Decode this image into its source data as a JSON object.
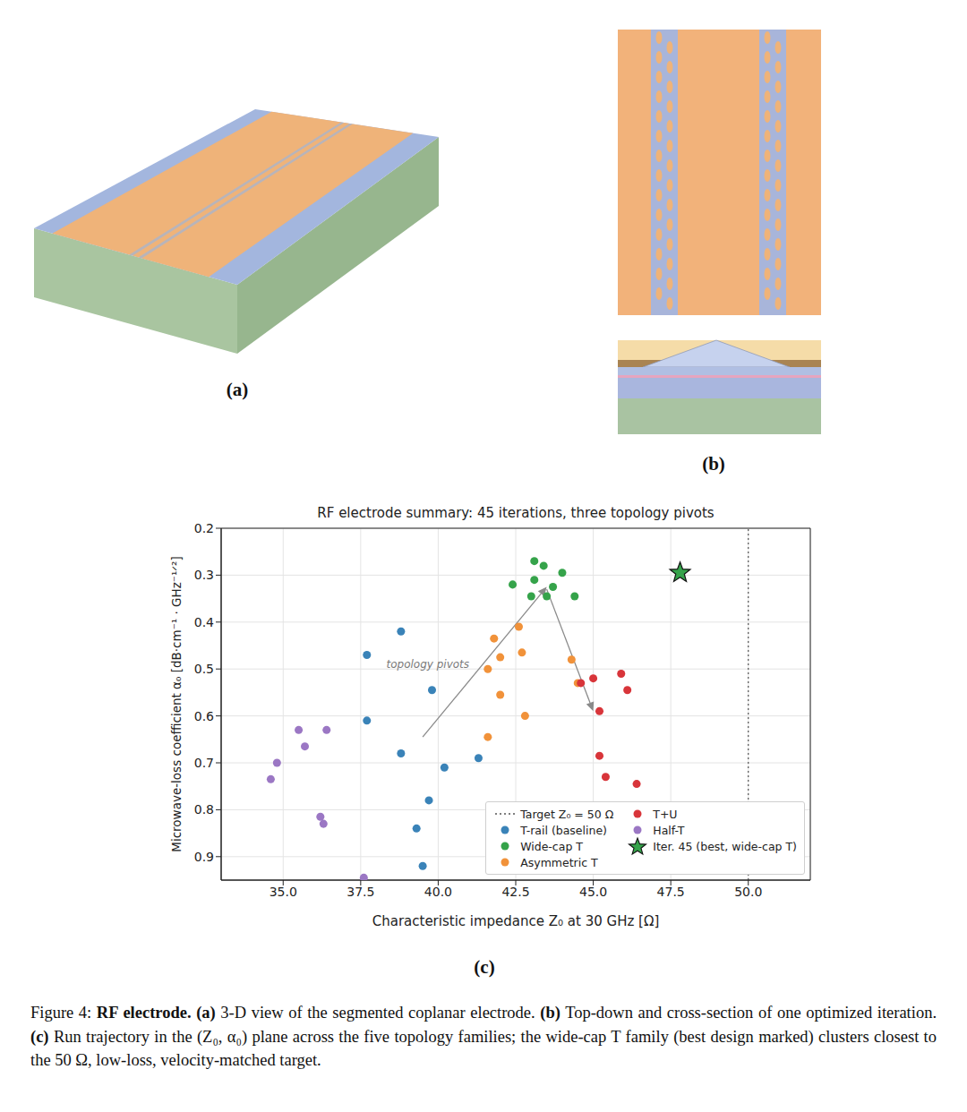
{
  "figure": {
    "panels": [
      {
        "label": "(a)"
      },
      {
        "label": "(b)"
      },
      {
        "label": "(c)"
      }
    ],
    "caption": {
      "number": "Figure 4:",
      "title": "RF electrode.",
      "parts": [
        {
          "label": "(a)",
          "text": "3-D view of the segmented coplanar electrode."
        },
        {
          "label": "(b)",
          "text": "Top-down and cross-section of one optimized iteration."
        },
        {
          "label": "(c)",
          "text": "Run trajectory in the (Z₀, α₀) plane across the five topology families; the wide-cap T family (best design marked) clusters closest to the 50 Ω, low-loss, velocity-matched target."
        }
      ]
    }
  },
  "chart_data": {
    "type": "scatter",
    "title": "RF electrode summary: 45 iterations, three topology pivots",
    "x_label": "Characteristic impedance Z₀ at 30 GHz  [Ω]",
    "y_label": "Microwave-loss coefficient α₀  [dB·cm⁻¹ · GHz⁻¹ᐟ²]",
    "xlim": [
      33,
      52
    ],
    "xticks": [
      {
        "value": 35,
        "label": "35.0"
      },
      37.5,
      {
        "value": 40,
        "label": "40.0"
      },
      42.5,
      {
        "value": 45,
        "label": "45.0"
      },
      47.5,
      {
        "value": 50,
        "label": "50.0"
      }
    ],
    "ylim": [
      0.95,
      0.2
    ],
    "yticks": [
      0.2,
      0.3,
      0.4,
      0.5,
      0.6,
      0.7,
      0.8,
      0.9
    ],
    "grid": true,
    "legend": "lower right",
    "target": {
      "name": "Target Z₀ = 50 Ω",
      "value": 50,
      "line_style": "dotted"
    },
    "series": [
      {
        "name": "T-rail (baseline)",
        "color": "#3a83b8",
        "marker": "circle",
        "x": [
          38.8,
          37.7,
          39.8,
          37.7,
          38.8,
          40.2,
          41.3,
          39.7,
          39.3,
          39.5
        ],
        "values": [
          0.42,
          0.47,
          0.545,
          0.61,
          0.68,
          0.71,
          0.69,
          0.78,
          0.84,
          0.92
        ]
      },
      {
        "name": "Wide-cap T",
        "color": "#35a34a",
        "marker": "circle",
        "x": [
          43.1,
          43.4,
          44.0,
          42.4,
          43.1,
          43.7,
          43.0,
          43.5,
          44.4
        ],
        "values": [
          0.27,
          0.28,
          0.295,
          0.32,
          0.31,
          0.325,
          0.345,
          0.345,
          0.345
        ]
      },
      {
        "name": "Asymmetric T",
        "color": "#f1923a",
        "marker": "circle",
        "x": [
          42.6,
          41.8,
          42.7,
          42.0,
          41.6,
          44.3,
          42.0,
          44.5,
          42.8,
          41.6
        ],
        "values": [
          0.41,
          0.435,
          0.465,
          0.475,
          0.5,
          0.48,
          0.555,
          0.53,
          0.6,
          0.645
        ]
      },
      {
        "name": "T+U",
        "color": "#d8353a",
        "marker": "circle",
        "x": [
          45.9,
          45.0,
          44.6,
          46.1,
          45.2,
          45.2,
          45.4,
          46.4
        ],
        "values": [
          0.51,
          0.52,
          0.53,
          0.545,
          0.59,
          0.685,
          0.73,
          0.745
        ]
      },
      {
        "name": "Half-T",
        "color": "#9b77c4",
        "marker": "circle",
        "x": [
          35.5,
          36.4,
          35.7,
          34.8,
          34.6,
          36.2,
          36.3,
          37.6
        ],
        "values": [
          0.63,
          0.63,
          0.665,
          0.7,
          0.735,
          0.815,
          0.83,
          0.945
        ]
      },
      {
        "name": "Iter. 45 (best, wide-cap T)",
        "color": "#35a34a",
        "marker": "star",
        "x": [
          47.8
        ],
        "values": [
          0.295
        ]
      }
    ],
    "annotations": [
      {
        "text": "topology pivots",
        "x": 41.0,
        "y": 0.49
      }
    ],
    "arrows": [
      {
        "from": {
          "x": 39.5,
          "y": 0.645
        },
        "to": {
          "x": 43.5,
          "y": 0.325
        }
      },
      {
        "from": {
          "x": 43.5,
          "y": 0.33
        },
        "to": {
          "x": 45.0,
          "y": 0.59
        }
      }
    ]
  }
}
